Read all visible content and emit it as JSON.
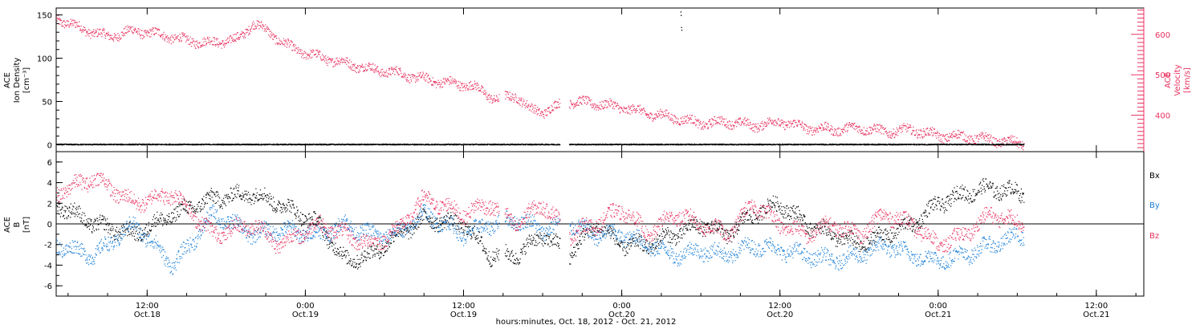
{
  "colors": {
    "frame": "#000000",
    "density": "#000000",
    "velocity": "#e8315f",
    "bx": "#000000",
    "by": "#1a7fd9",
    "bz": "#e8315f"
  },
  "chart_data": [
    {
      "type": "scatter",
      "panel": "top",
      "xlabel": "hours:minutes, Oct. 18, 2012 - Oct. 21, 2012",
      "x_ticks": [
        {
          "time": "12:00",
          "date": "Oct.18"
        },
        {
          "time": "0:00",
          "date": "Oct.19"
        },
        {
          "time": "12:00",
          "date": "Oct.19"
        },
        {
          "time": "0:00",
          "date": "Oct.20"
        },
        {
          "time": "12:00",
          "date": "Oct.20"
        },
        {
          "time": "0:00",
          "date": "Oct.21"
        },
        {
          "time": "12:00",
          "date": "Oct.21"
        }
      ],
      "x_tick_hours": [
        12,
        24,
        36,
        48,
        60,
        72,
        84
      ],
      "x_range_hours": [
        5.1,
        87.6
      ],
      "left_axis": {
        "label_lines": [
          "ACE",
          "Ion Density",
          "[cm⁻³]"
        ],
        "range": [
          -8,
          158
        ],
        "ticks": [
          0,
          50,
          100,
          150
        ]
      },
      "right_axis": {
        "label_lines": [
          "ACE",
          "Velocity",
          "[km/s]"
        ],
        "range": [
          310,
          665
        ],
        "ticks": [
          400,
          500,
          600
        ]
      },
      "series": [
        {
          "name": "Ion Density",
          "axis": "left",
          "x": [
            5.1,
            10,
            20,
            30,
            40,
            50,
            52.4,
            52.5,
            52.6,
            60,
            70,
            78.5
          ],
          "y": [
            0.5,
            0.5,
            0.6,
            0.7,
            0.8,
            1.0,
            160,
            145,
            1.2,
            1.2,
            1.0,
            0.8
          ]
        },
        {
          "name": "Velocity",
          "axis": "right",
          "x": [
            5.1,
            7,
            9,
            11,
            13,
            15,
            17,
            19,
            20,
            21,
            23,
            25,
            27,
            29,
            31,
            33,
            35,
            36.5,
            38.5,
            39.2,
            40,
            41,
            42,
            44,
            46,
            48,
            50,
            52,
            54,
            56,
            58,
            60,
            62,
            64,
            66,
            68,
            70,
            72,
            74,
            76,
            78.5
          ],
          "y": [
            640,
            615,
            595,
            610,
            600,
            585,
            580,
            590,
            630,
            610,
            565,
            545,
            530,
            515,
            505,
            490,
            480,
            475,
            440,
            445,
            450,
            415,
            410,
            435,
            430,
            420,
            405,
            395,
            380,
            385,
            375,
            385,
            370,
            365,
            370,
            360,
            365,
            350,
            348,
            340,
            330
          ]
        }
      ]
    },
    {
      "type": "scatter",
      "panel": "bottom",
      "left_axis": {
        "label_lines": [
          "ACE",
          "B",
          "[nT]"
        ],
        "range": [
          -7,
          7
        ],
        "ticks": [
          -6,
          -4,
          -2,
          0,
          2,
          4,
          6
        ]
      },
      "legend": [
        "Bx",
        "By",
        "Bz"
      ],
      "legend_position": "right",
      "series": [
        {
          "name": "Bx",
          "x": [
            5.1,
            8,
            11,
            14,
            17,
            20,
            22,
            25,
            27,
            29,
            31,
            33,
            36,
            38,
            40,
            42,
            44,
            46,
            48,
            50,
            52,
            54,
            56,
            58,
            60,
            62,
            64,
            66,
            68,
            70,
            72,
            74,
            76,
            78.5
          ],
          "y": [
            2,
            0,
            -1,
            1,
            2.5,
            3,
            2,
            0,
            -3.5,
            -3,
            -1,
            0.5,
            0,
            -3,
            -3,
            -1,
            -3,
            0,
            -2,
            -2,
            -1,
            0,
            -1,
            1,
            2,
            0,
            -1,
            -2,
            -1,
            0,
            2,
            3,
            3.5,
            3
          ]
        },
        {
          "name": "By",
          "x": [
            5.1,
            8,
            11,
            14,
            17,
            20,
            22,
            25,
            27,
            29,
            31,
            33,
            36,
            38,
            40,
            42,
            44,
            46,
            48,
            50,
            52,
            54,
            56,
            58,
            60,
            62,
            64,
            66,
            68,
            70,
            72,
            74,
            76,
            78.5
          ],
          "y": [
            -2,
            -3,
            0,
            -4,
            1,
            -1,
            -0.5,
            -1,
            0,
            -1,
            -1,
            1,
            -1,
            0,
            0.5,
            -0.5,
            0,
            -1,
            -1,
            -2,
            -3,
            -2.5,
            -3,
            -2,
            -2.5,
            -3,
            -3.5,
            -3,
            -2,
            -3,
            -3.5,
            -3,
            -2,
            -1
          ]
        },
        {
          "name": "Bz",
          "x": [
            5.1,
            8,
            11,
            14,
            17,
            20,
            22,
            25,
            27,
            29,
            31,
            33,
            36,
            38,
            40,
            42,
            44,
            46,
            48,
            50,
            52,
            54,
            56,
            58,
            60,
            62,
            64,
            66,
            68,
            70,
            72,
            74,
            76,
            78.5
          ],
          "y": [
            3,
            4.5,
            2,
            3,
            -1,
            0,
            -2,
            0,
            -1,
            -2,
            -0.5,
            2.5,
            1,
            2,
            0,
            2,
            -1,
            0,
            1.5,
            -1,
            1,
            0,
            -1,
            2,
            0,
            -1,
            0,
            -1,
            1,
            0,
            -2,
            -1,
            1,
            0
          ]
        }
      ]
    }
  ]
}
